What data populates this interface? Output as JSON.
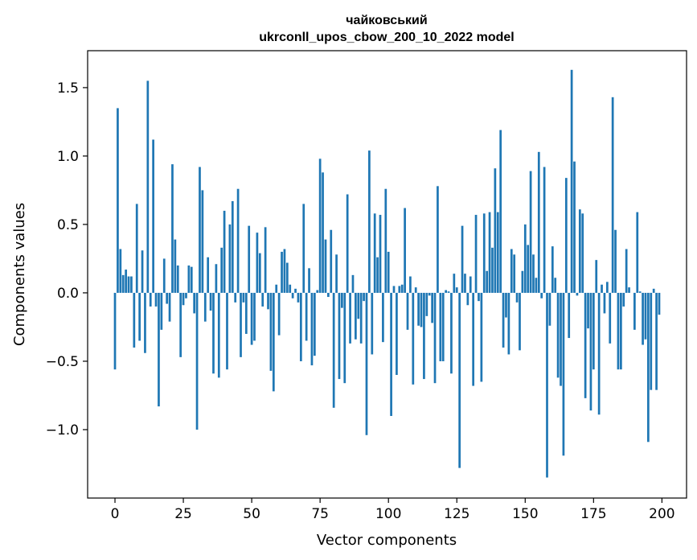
{
  "chart_data": {
    "type": "bar",
    "title_line1": "чайковський",
    "title_line2": "ukrconll_upos_cbow_200_10_2022 model",
    "xlabel": "Vector components",
    "ylabel": "Components values",
    "xlim": [
      -10,
      209
    ],
    "ylim": [
      -1.5,
      1.77
    ],
    "xticks": [
      0,
      25,
      50,
      75,
      100,
      125,
      150,
      175,
      200
    ],
    "yticks": [
      -1.0,
      -0.5,
      0.0,
      0.5,
      1.0,
      1.5
    ],
    "xtick_labels": [
      "0",
      "25",
      "50",
      "75",
      "100",
      "125",
      "150",
      "175",
      "200"
    ],
    "ytick_labels": [
      "−1.0",
      "−0.5",
      "0.0",
      "0.5",
      "1.0",
      "1.5"
    ],
    "bar_color": "#1f77b4",
    "grid": false,
    "legend": "none",
    "x": [
      0,
      1,
      2,
      3,
      4,
      5,
      6,
      7,
      8,
      9,
      10,
      11,
      12,
      13,
      14,
      15,
      16,
      17,
      18,
      19,
      20,
      21,
      22,
      23,
      24,
      25,
      26,
      27,
      28,
      29,
      30,
      31,
      32,
      33,
      34,
      35,
      36,
      37,
      38,
      39,
      40,
      41,
      42,
      43,
      44,
      45,
      46,
      47,
      48,
      49,
      50,
      51,
      52,
      53,
      54,
      55,
      56,
      57,
      58,
      59,
      60,
      61,
      62,
      63,
      64,
      65,
      66,
      67,
      68,
      69,
      70,
      71,
      72,
      73,
      74,
      75,
      76,
      77,
      78,
      79,
      80,
      81,
      82,
      83,
      84,
      85,
      86,
      87,
      88,
      89,
      90,
      91,
      92,
      93,
      94,
      95,
      96,
      97,
      98,
      99,
      100,
      101,
      102,
      103,
      104,
      105,
      106,
      107,
      108,
      109,
      110,
      111,
      112,
      113,
      114,
      115,
      116,
      117,
      118,
      119,
      120,
      121,
      122,
      123,
      124,
      125,
      126,
      127,
      128,
      129,
      130,
      131,
      132,
      133,
      134,
      135,
      136,
      137,
      138,
      139,
      140,
      141,
      142,
      143,
      144,
      145,
      146,
      147,
      148,
      149,
      150,
      151,
      152,
      153,
      154,
      155,
      156,
      157,
      158,
      159,
      160,
      161,
      162,
      163,
      164,
      165,
      166,
      167,
      168,
      169,
      170,
      171,
      172,
      173,
      174,
      175,
      176,
      177,
      178,
      179,
      180,
      181,
      182,
      183,
      184,
      185,
      186,
      187,
      188,
      189,
      190,
      191,
      192,
      193,
      194,
      195,
      196,
      197,
      198,
      199
    ],
    "values": [
      -0.56,
      1.35,
      0.32,
      0.13,
      0.17,
      0.12,
      0.12,
      -0.4,
      0.65,
      -0.35,
      0.31,
      -0.44,
      1.55,
      -0.1,
      1.12,
      -0.1,
      -0.83,
      -0.27,
      0.25,
      -0.08,
      -0.21,
      0.94,
      0.39,
      0.2,
      -0.47,
      -0.09,
      -0.04,
      0.2,
      0.19,
      -0.15,
      -1.0,
      0.92,
      0.75,
      -0.21,
      0.26,
      -0.13,
      -0.59,
      0.21,
      -0.62,
      0.33,
      0.6,
      -0.56,
      0.5,
      0.67,
      -0.07,
      0.76,
      -0.47,
      -0.07,
      -0.3,
      0.49,
      -0.38,
      -0.35,
      0.44,
      0.29,
      -0.1,
      0.48,
      -0.12,
      -0.57,
      -0.72,
      0.06,
      -0.31,
      0.3,
      0.32,
      0.22,
      0.06,
      -0.04,
      0.03,
      -0.07,
      -0.5,
      0.65,
      -0.35,
      0.18,
      -0.53,
      -0.46,
      0.02,
      0.98,
      0.88,
      0.39,
      -0.03,
      0.46,
      -0.84,
      0.28,
      -0.63,
      -0.11,
      -0.66,
      0.72,
      -0.37,
      0.13,
      -0.34,
      -0.19,
      -0.37,
      -0.06,
      -1.04,
      1.04,
      -0.45,
      0.58,
      0.26,
      0.57,
      -0.36,
      0.76,
      0.3,
      -0.9,
      0.05,
      -0.6,
      0.05,
      0.06,
      0.62,
      -0.27,
      0.12,
      -0.67,
      0.04,
      -0.24,
      -0.25,
      -0.63,
      -0.17,
      -0.02,
      -0.22,
      -0.66,
      0.78,
      -0.5,
      -0.5,
      0.02,
      0.01,
      -0.59,
      0.14,
      0.04,
      -1.28,
      0.49,
      0.14,
      -0.09,
      0.12,
      -0.68,
      0.57,
      -0.06,
      -0.65,
      0.58,
      0.16,
      0.59,
      0.33,
      0.91,
      0.59,
      1.19,
      -0.4,
      -0.18,
      -0.45,
      0.32,
      0.28,
      -0.07,
      -0.42,
      0.16,
      0.5,
      0.35,
      0.89,
      0.28,
      0.11,
      1.03,
      -0.04,
      0.92,
      -1.35,
      -0.24,
      0.34,
      0.11,
      -0.62,
      -0.68,
      -1.19,
      0.84,
      -0.33,
      1.63,
      0.96,
      -0.02,
      0.61,
      0.58,
      -0.77,
      -0.26,
      -0.86,
      -0.56,
      0.24,
      -0.89,
      0.06,
      -0.15,
      0.08,
      -0.37,
      1.43,
      0.46,
      -0.56,
      -0.56,
      -0.1,
      0.32,
      0.04,
      0.0,
      -0.27,
      0.59,
      0.01,
      -0.38,
      -0.34,
      -1.09,
      -0.71,
      0.03,
      -0.71,
      -0.16
    ]
  }
}
